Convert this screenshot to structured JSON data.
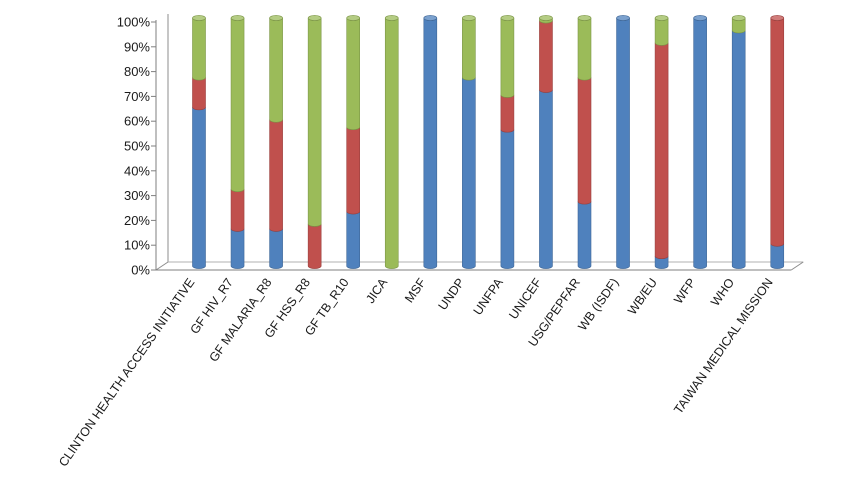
{
  "chart_data": {
    "type": "bar",
    "stacked": "percent",
    "categories": [
      "CLINTON HEALTH ACCESS INITIATIVE",
      "GF HIV_R7",
      "GF MALARIA_R8",
      "GF HSS_R8",
      "GF TB_R10",
      "JICA",
      "MSF",
      "UNDP",
      "UNFPA",
      "UNICEF",
      "USG/PEPFAR",
      "WB (ISDF)",
      "WB/EU",
      "WFP",
      "WHO",
      "TAIWAN MEDICAL MISSION"
    ],
    "series": [
      {
        "color": "#4f81bd",
        "values": [
          64,
          15,
          15,
          0,
          22,
          0,
          100,
          76,
          55,
          71,
          26,
          100,
          4,
          100,
          95,
          9
        ]
      },
      {
        "color": "#c0504d",
        "values": [
          12,
          16,
          44,
          17,
          34,
          0,
          0,
          0,
          14,
          28,
          50,
          0,
          86,
          0,
          0,
          91
        ]
      },
      {
        "color": "#9bbb59",
        "values": [
          24,
          69,
          41,
          83,
          44,
          100,
          0,
          24,
          31,
          1,
          24,
          0,
          10,
          0,
          5,
          0
        ]
      }
    ],
    "y_tick_labels": [
      "0%",
      "10%",
      "20%",
      "30%",
      "40%",
      "50%",
      "60%",
      "70%",
      "80%",
      "90%",
      "100%"
    ],
    "ylim": [
      0,
      100
    ],
    "grid": false,
    "legend": "none"
  }
}
